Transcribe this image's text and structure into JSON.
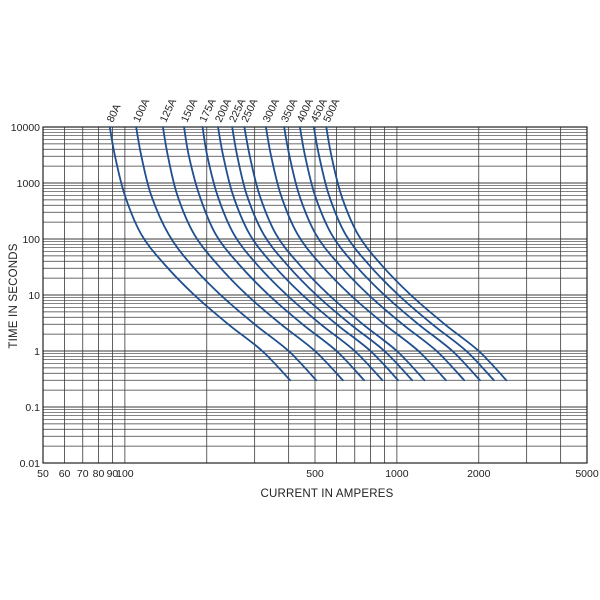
{
  "chart_data": {
    "type": "line",
    "title": "",
    "xlabel": "CURRENT IN AMPERES",
    "ylabel": "TIME IN SECONDS",
    "x_scale": "log",
    "y_scale": "log",
    "xlim": [
      50,
      5000
    ],
    "ylim": [
      0.01,
      10000
    ],
    "x_ticks": [
      50,
      60,
      70,
      80,
      90,
      100,
      500,
      1000,
      2000,
      5000
    ],
    "x_tick_labels": [
      "50",
      "60",
      "70",
      "80",
      "90",
      "100",
      "500",
      "1000",
      "2000",
      "5000"
    ],
    "y_ticks": [
      0.01,
      0.1,
      1,
      10,
      100,
      1000,
      10000
    ],
    "y_tick_labels": [
      "0.01",
      "0.1",
      "1",
      "10",
      "100",
      "1000",
      "10000"
    ],
    "grid": true,
    "line_color": "#1f4f8f",
    "series": [
      {
        "name": "80A",
        "x": [
          88,
          92,
          100,
          115,
          140,
          180,
          240,
          320,
          405
        ],
        "y": [
          10000,
          3000,
          600,
          120,
          35,
          10,
          3,
          1,
          0.3
        ]
      },
      {
        "name": "100A",
        "x": [
          110,
          115,
          125,
          145,
          175,
          225,
          300,
          400,
          505
        ],
        "y": [
          10000,
          3000,
          600,
          120,
          35,
          10,
          3,
          1,
          0.3
        ]
      },
      {
        "name": "125A",
        "x": [
          138,
          144,
          156,
          180,
          219,
          281,
          375,
          500,
          633
        ],
        "y": [
          10000,
          3000,
          600,
          120,
          35,
          10,
          3,
          1,
          0.3
        ]
      },
      {
        "name": "150A",
        "x": [
          165,
          172,
          188,
          216,
          263,
          338,
          450,
          600,
          758
        ],
        "y": [
          10000,
          3000,
          600,
          120,
          35,
          10,
          3,
          1,
          0.3
        ]
      },
      {
        "name": "175A",
        "x": [
          193,
          201,
          219,
          252,
          306,
          394,
          525,
          700,
          885
        ],
        "y": [
          10000,
          3000,
          600,
          120,
          35,
          10,
          3,
          1,
          0.3
        ]
      },
      {
        "name": "200A",
        "x": [
          220,
          230,
          250,
          288,
          350,
          450,
          600,
          800,
          1010
        ],
        "y": [
          10000,
          3000,
          600,
          120,
          35,
          10,
          3,
          1,
          0.3
        ]
      },
      {
        "name": "225A",
        "x": [
          248,
          259,
          281,
          324,
          394,
          506,
          675,
          900,
          1138
        ],
        "y": [
          10000,
          3000,
          600,
          120,
          35,
          10,
          3,
          1,
          0.3
        ]
      },
      {
        "name": "250A",
        "x": [
          275,
          288,
          313,
          360,
          438,
          563,
          750,
          1000,
          1263
        ],
        "y": [
          10000,
          3000,
          600,
          120,
          35,
          10,
          3,
          1,
          0.3
        ]
      },
      {
        "name": "300A",
        "x": [
          330,
          345,
          375,
          432,
          525,
          675,
          900,
          1200,
          1515
        ],
        "y": [
          10000,
          3000,
          600,
          120,
          35,
          10,
          3,
          1,
          0.3
        ]
      },
      {
        "name": "350A",
        "x": [
          385,
          403,
          438,
          504,
          613,
          788,
          1050,
          1400,
          1768
        ],
        "y": [
          10000,
          3000,
          600,
          120,
          35,
          10,
          3,
          1,
          0.3
        ]
      },
      {
        "name": "400A",
        "x": [
          440,
          460,
          500,
          576,
          700,
          900,
          1200,
          1600,
          2020
        ],
        "y": [
          10000,
          3000,
          600,
          120,
          35,
          10,
          3,
          1,
          0.3
        ]
      },
      {
        "name": "450A",
        "x": [
          495,
          518,
          563,
          648,
          788,
          1013,
          1350,
          1800,
          2273
        ],
        "y": [
          10000,
          3000,
          600,
          120,
          35,
          10,
          3,
          1,
          0.3
        ]
      },
      {
        "name": "500A",
        "x": [
          550,
          575,
          625,
          720,
          875,
          1125,
          1500,
          2000,
          2525
        ],
        "y": [
          10000,
          3000,
          600,
          120,
          35,
          10,
          3,
          1,
          0.3
        ]
      }
    ]
  }
}
